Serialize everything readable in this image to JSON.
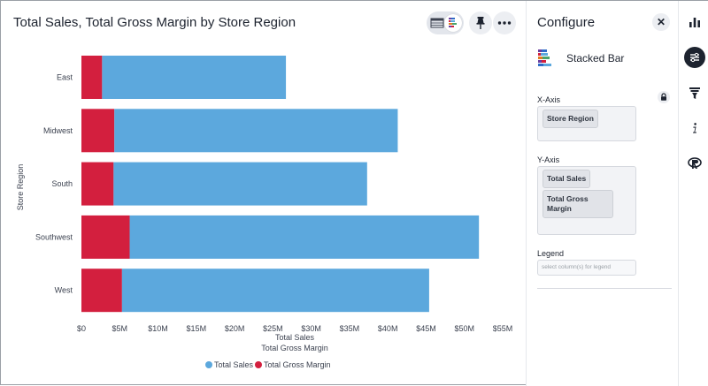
{
  "chart_title": "Total Sales, Total Gross Margin by Store Region",
  "toolbar": {
    "view_toggle_icons": [
      "table-icon",
      "chart-icon"
    ],
    "pin_icon": "pin-icon",
    "more_icon": "more-icon"
  },
  "colors": {
    "total_sales": "#5ca8dd",
    "total_gross_margin": "#d31f3e",
    "text": "#1d232f",
    "axis_text": "#3c4250"
  },
  "chart_data": {
    "type": "bar",
    "orientation": "horizontal",
    "stacked": true,
    "title": "Total Sales, Total Gross Margin by Store Region",
    "categories": [
      "East",
      "Midwest",
      "South",
      "Southwest",
      "West"
    ],
    "series": [
      {
        "name": "Total Gross Margin",
        "values": [
          2.7,
          4.3,
          4.2,
          6.3,
          5.3
        ]
      },
      {
        "name": "Total Sales",
        "values": [
          24.0,
          37.0,
          33.1,
          45.6,
          40.1
        ]
      }
    ],
    "xlabel": [
      "Total Sales",
      "Total Gross Margin"
    ],
    "ylabel": "Store Region",
    "xlim": [
      0,
      55
    ],
    "x_ticks": [
      {
        "value": 0,
        "label": "$0"
      },
      {
        "value": 5,
        "label": "$5M"
      },
      {
        "value": 10,
        "label": "$10M"
      },
      {
        "value": 15,
        "label": "$15M"
      },
      {
        "value": 20,
        "label": "$20M"
      },
      {
        "value": 25,
        "label": "$25M"
      },
      {
        "value": 30,
        "label": "$30M"
      },
      {
        "value": 35,
        "label": "$35M"
      },
      {
        "value": 40,
        "label": "$40M"
      },
      {
        "value": 45,
        "label": "$45M"
      },
      {
        "value": 50,
        "label": "$50M"
      },
      {
        "value": 55,
        "label": "$55M"
      }
    ],
    "grid": false,
    "legend": {
      "placement": "bottom",
      "entries": [
        "Total Sales",
        "Total Gross Margin"
      ]
    }
  },
  "configure": {
    "title": "Configure",
    "close_icon": "close-icon",
    "chart_type_label": "Stacked Bar",
    "x_axis": {
      "label": "X-Axis",
      "columns": [
        "Store Region"
      ],
      "lock_icon": "lock-icon"
    },
    "y_axis": {
      "label": "Y-Axis",
      "columns": [
        "Total Sales",
        "Total Gross Margin"
      ]
    },
    "legend": {
      "label": "Legend",
      "placeholder": "select column(s) for legend"
    }
  },
  "rail": {
    "items": [
      {
        "icon": "bar-chart-icon",
        "active": false
      },
      {
        "icon": "configure-icon",
        "active": true
      },
      {
        "icon": "filter-icon",
        "active": false
      },
      {
        "icon": "info-icon",
        "active": false
      },
      {
        "icon": "r-icon",
        "active": false
      }
    ]
  }
}
